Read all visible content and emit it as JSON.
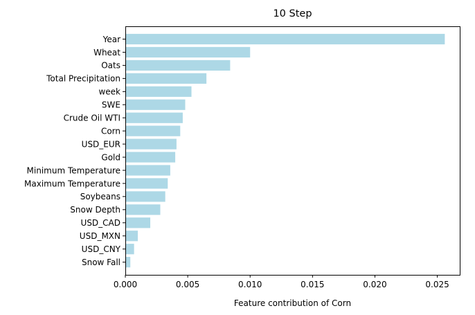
{
  "chart_data": {
    "type": "bar",
    "orientation": "horizontal",
    "title": "10 Step",
    "xlabel": "Feature contribution of Corn",
    "ylabel": "",
    "xlim": [
      0,
      0.0268
    ],
    "xticks": [
      0.0,
      0.005,
      0.01,
      0.015,
      0.02,
      0.025
    ],
    "xtick_labels": [
      "0.000",
      "0.005",
      "0.010",
      "0.015",
      "0.020",
      "0.025"
    ],
    "bar_color": "#add8e6",
    "grid": false,
    "categories": [
      "Year",
      "Wheat",
      "Oats",
      "Total Precipitation",
      "week",
      "SWE",
      "Crude Oil WTI",
      "Corn",
      "USD_EUR",
      "Gold",
      "Minimum Temperature",
      "Maximum Temperature",
      "Soybeans",
      "Snow Depth",
      "USD_CAD",
      "USD_MXN",
      "USD_CNY",
      "Snow Fall"
    ],
    "values": [
      0.0256,
      0.01,
      0.0084,
      0.0065,
      0.0053,
      0.0048,
      0.0046,
      0.0044,
      0.0041,
      0.004,
      0.0036,
      0.0034,
      0.0032,
      0.0028,
      0.002,
      0.001,
      0.0007,
      0.0004
    ]
  }
}
